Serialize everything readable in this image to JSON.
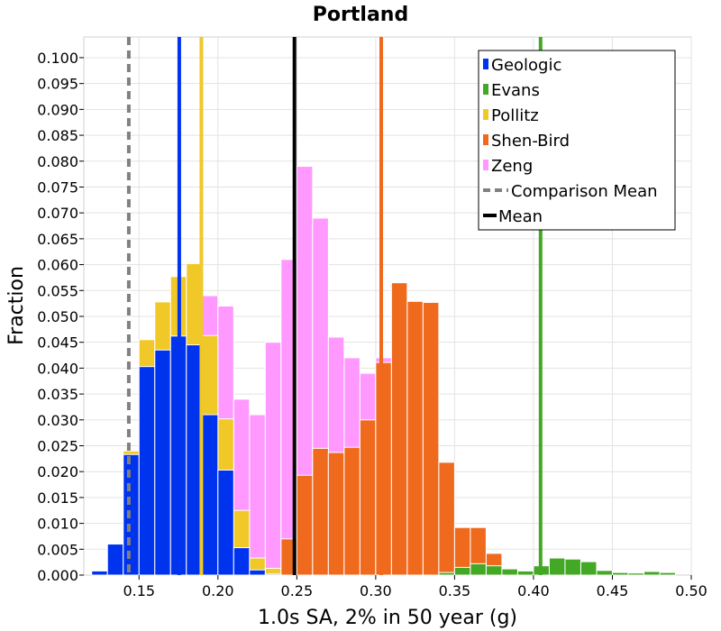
{
  "chart_data": {
    "type": "bar",
    "title": "Portland",
    "xlabel": "1.0s SA, 2% in 50 year (g)",
    "ylabel": "Fraction",
    "xlim": [
      0.115,
      0.5
    ],
    "ylim": [
      0,
      0.104
    ],
    "bin_width": 0.01,
    "x_ticks": [
      0.15,
      0.2,
      0.25,
      0.3,
      0.35,
      0.4,
      0.45,
      0.5
    ],
    "x_tick_labels": [
      "0.15",
      "0.20",
      "0.25",
      "0.30",
      "0.35",
      "0.40",
      "0.45",
      "0.50"
    ],
    "y_ticks": [
      0.0,
      0.005,
      0.01,
      0.015,
      0.02,
      0.025,
      0.03,
      0.035,
      0.04,
      0.045,
      0.05,
      0.055,
      0.06,
      0.065,
      0.07,
      0.075,
      0.08,
      0.085,
      0.09,
      0.095,
      0.1
    ],
    "y_tick_labels": [
      "0.000",
      "0.005",
      "0.010",
      "0.015",
      "0.020",
      "0.025",
      "0.030",
      "0.035",
      "0.040",
      "0.045",
      "0.050",
      "0.055",
      "0.060",
      "0.065",
      "0.070",
      "0.075",
      "0.080",
      "0.085",
      "0.090",
      "0.095",
      "0.100"
    ],
    "grid": true,
    "legend_position": "top-right",
    "series": [
      {
        "name": "Zeng",
        "color": "#ff99ff",
        "x": [
          0.195,
          0.205,
          0.215,
          0.225,
          0.235,
          0.245,
          0.255,
          0.265,
          0.275,
          0.285,
          0.295,
          0.305
        ],
        "values": [
          0.054,
          0.052,
          0.034,
          0.031,
          0.045,
          0.061,
          0.079,
          0.069,
          0.046,
          0.042,
          0.039,
          0.042
        ]
      },
      {
        "name": "Pollitz",
        "color": "#f0c827",
        "x": [
          0.145,
          0.155,
          0.165,
          0.175,
          0.185,
          0.195,
          0.205,
          0.215,
          0.225,
          0.235
        ],
        "values": [
          0.024,
          0.0455,
          0.0528,
          0.0577,
          0.0602,
          0.0463,
          0.0302,
          0.0125,
          0.0033,
          0.0013
        ]
      },
      {
        "name": "Geologic",
        "color": "#0033ee",
        "x": [
          0.125,
          0.135,
          0.145,
          0.155,
          0.165,
          0.175,
          0.185,
          0.195,
          0.205,
          0.215,
          0.225,
          0.235
        ],
        "values": [
          0.0008,
          0.006,
          0.0233,
          0.0403,
          0.0435,
          0.0462,
          0.0445,
          0.031,
          0.0203,
          0.0053,
          0.001,
          0.0002
        ]
      },
      {
        "name": "Shen-Bird",
        "color": "#f06a1e",
        "x": [
          0.245,
          0.255,
          0.265,
          0.275,
          0.285,
          0.295,
          0.305,
          0.315,
          0.325,
          0.335,
          0.345,
          0.355,
          0.365,
          0.375
        ],
        "values": [
          0.007,
          0.0193,
          0.0245,
          0.0237,
          0.0247,
          0.03,
          0.0411,
          0.0565,
          0.0529,
          0.0527,
          0.0218,
          0.0092,
          0.0092,
          0.0042
        ]
      },
      {
        "name": "Evans",
        "color": "#44a827",
        "x": [
          0.345,
          0.355,
          0.365,
          0.375,
          0.385,
          0.395,
          0.405,
          0.415,
          0.425,
          0.435,
          0.445,
          0.455,
          0.465,
          0.475,
          0.485
        ],
        "values": [
          0.0005,
          0.0015,
          0.0022,
          0.0018,
          0.0012,
          0.0008,
          0.0018,
          0.0033,
          0.0031,
          0.0026,
          0.0009,
          0.0005,
          0.0004,
          0.0007,
          0.0005
        ]
      }
    ],
    "lines": [
      {
        "name": "Geologic mean",
        "x": 0.1755,
        "color": "#0033ee",
        "style": "solid"
      },
      {
        "name": "Pollitz mean",
        "x": 0.1895,
        "color": "#f0c827",
        "style": "solid"
      },
      {
        "name": "Mean",
        "x": 0.2485,
        "color": "#000000",
        "style": "solid"
      },
      {
        "name": "Shen-Bird mean",
        "x": 0.3035,
        "color": "#f06a1e",
        "style": "solid"
      },
      {
        "name": "Evans mean",
        "x": 0.4045,
        "color": "#44a827",
        "style": "solid"
      },
      {
        "name": "Comparison Mean",
        "x": 0.1435,
        "color": "#808080",
        "style": "dashed"
      }
    ],
    "legend": [
      {
        "label": "Geologic",
        "color": "#0033ee",
        "kind": "box"
      },
      {
        "label": "Evans",
        "color": "#44a827",
        "kind": "box"
      },
      {
        "label": "Pollitz",
        "color": "#f0c827",
        "kind": "box"
      },
      {
        "label": "Shen-Bird",
        "color": "#f06a1e",
        "kind": "box"
      },
      {
        "label": "Zeng",
        "color": "#ff99ff",
        "kind": "box"
      },
      {
        "label": "Comparison Mean",
        "color": "#808080",
        "kind": "dashed"
      },
      {
        "label": "Mean",
        "color": "#000000",
        "kind": "solid"
      }
    ]
  }
}
